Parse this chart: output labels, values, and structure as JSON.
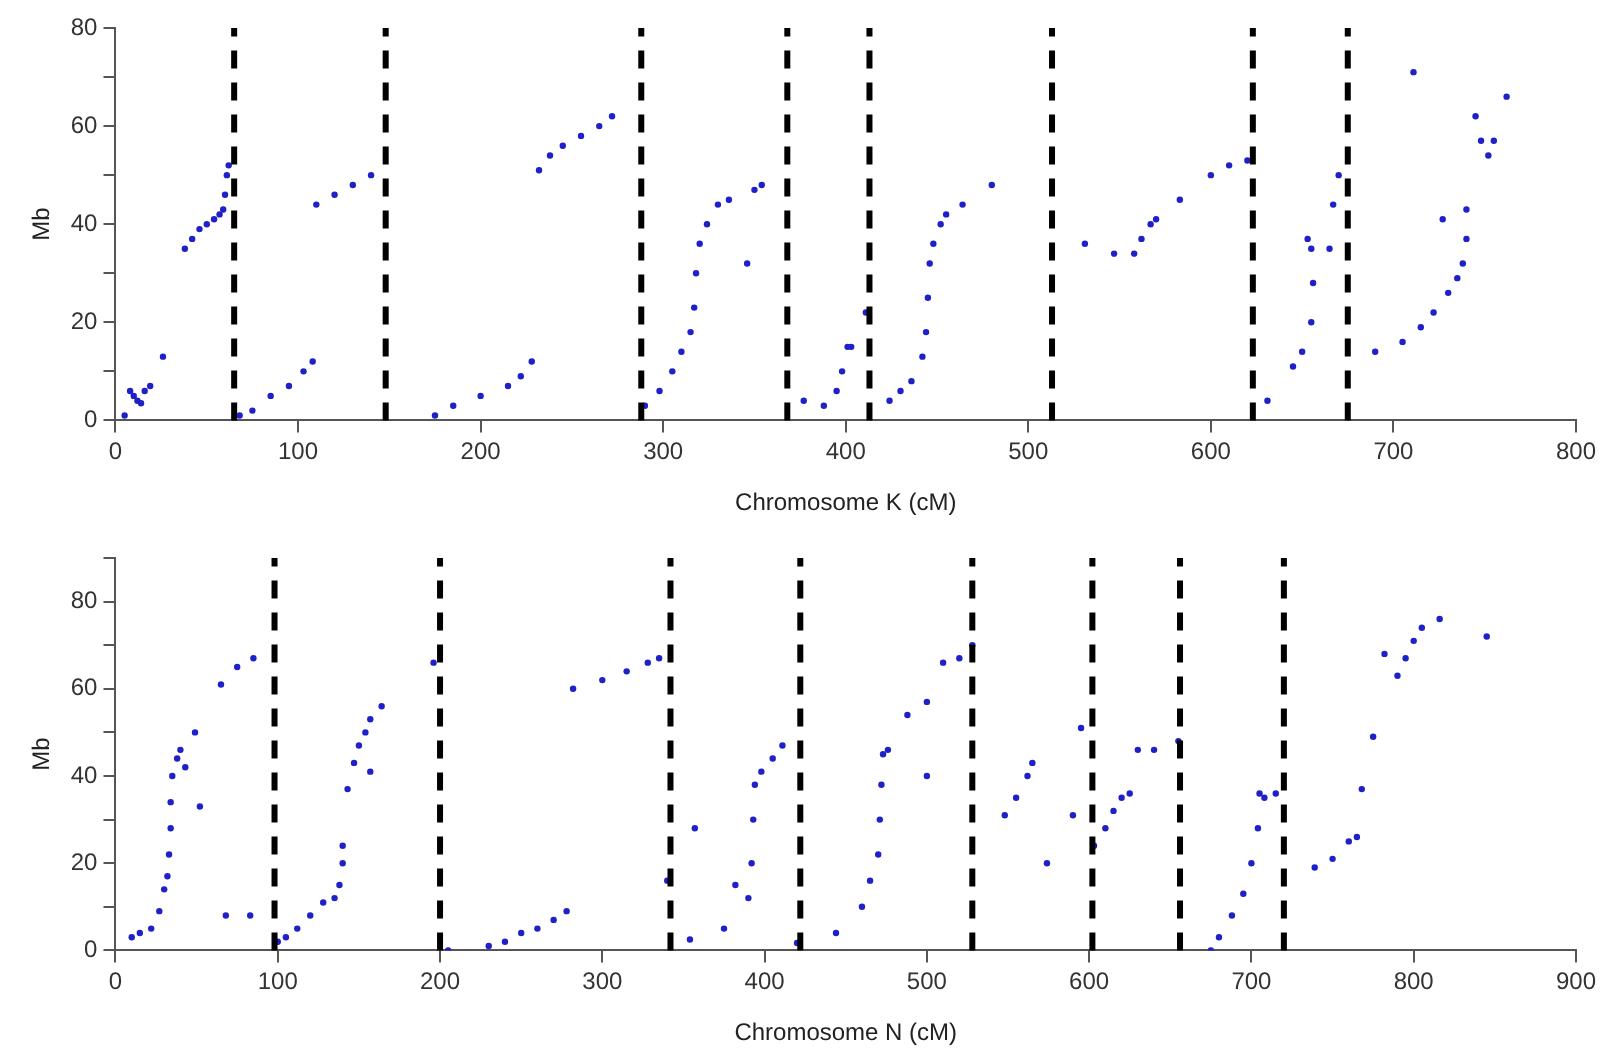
{
  "chart_data": [
    {
      "type": "scatter",
      "xlabel": "Chromosome K (cM)",
      "ylabel": "Mb",
      "xlim": [
        0,
        800
      ],
      "xticks": [
        0,
        100,
        200,
        300,
        400,
        500,
        600,
        700,
        800
      ],
      "ylim": [
        0,
        80
      ],
      "yticks": [
        0,
        {
          "value": 10,
          "label": null
        },
        20,
        {
          "value": 30,
          "label": null
        },
        40,
        {
          "value": 50,
          "label": null
        },
        60,
        {
          "value": 70,
          "label": null
        },
        80
      ],
      "grid": false,
      "legend": false,
      "marker": "circle",
      "series": [
        {
          "color": "#2020c8",
          "x": [
            5,
            8,
            10,
            12,
            14,
            16,
            19,
            26,
            38,
            42,
            46,
            50,
            54,
            57,
            59,
            60,
            61,
            62,
            65,
            68,
            75,
            85,
            95,
            103,
            108,
            110,
            120,
            130,
            140,
            175,
            185,
            200,
            215,
            222,
            228,
            232,
            238,
            245,
            255,
            265,
            272,
            290,
            298,
            305,
            310,
            315,
            317,
            318,
            320,
            324,
            330,
            336,
            346,
            350,
            354,
            377,
            388,
            395,
            398,
            401,
            403,
            411,
            424,
            430,
            436,
            442,
            444,
            445,
            446,
            448,
            452,
            455,
            464,
            480,
            531,
            547,
            558,
            562,
            567,
            570,
            583,
            600,
            610,
            620,
            631,
            645,
            650,
            655,
            656,
            655,
            653,
            665,
            667,
            670,
            690,
            705,
            715,
            722,
            730,
            735,
            738,
            740,
            740,
            727,
            711,
            745,
            748,
            752,
            755,
            762
          ],
          "values": [
            1,
            6,
            5,
            4,
            3.5,
            6,
            7,
            13,
            35,
            37,
            39,
            40,
            41,
            42,
            43,
            46,
            50,
            52,
            0,
            1,
            2,
            5,
            7,
            10,
            12,
            44,
            46,
            48,
            50,
            1,
            3,
            5,
            7,
            9,
            12,
            51,
            54,
            56,
            58,
            60,
            62,
            3,
            6,
            10,
            14,
            18,
            23,
            30,
            36,
            40,
            44,
            45,
            32,
            47,
            48,
            4,
            3,
            6,
            10,
            15,
            15,
            22,
            4,
            6,
            8,
            13,
            18,
            25,
            32,
            36,
            40,
            42,
            44,
            48,
            36,
            34,
            34,
            37,
            40,
            41,
            45,
            50,
            52,
            53,
            4,
            11,
            14,
            20,
            28,
            35,
            37,
            35,
            44,
            50,
            14,
            16,
            19,
            22,
            26,
            29,
            32,
            37,
            43,
            41,
            71,
            62,
            57,
            54,
            57,
            66
          ]
        }
      ],
      "ref_lines": [
        {
          "axis": "x",
          "value": 65,
          "color": "#000000",
          "line_style": "dashed"
        },
        {
          "axis": "x",
          "value": 148,
          "color": "#000000",
          "line_style": "dashed"
        },
        {
          "axis": "x",
          "value": 288,
          "color": "#000000",
          "line_style": "dashed"
        },
        {
          "axis": "x",
          "value": 368,
          "color": "#000000",
          "line_style": "dashed"
        },
        {
          "axis": "x",
          "value": 413,
          "color": "#000000",
          "line_style": "dashed"
        },
        {
          "axis": "x",
          "value": 513,
          "color": "#000000",
          "line_style": "dashed"
        },
        {
          "axis": "x",
          "value": 623,
          "color": "#000000",
          "line_style": "dashed"
        },
        {
          "axis": "x",
          "value": 675,
          "color": "#000000",
          "line_style": "dashed"
        }
      ]
    },
    {
      "type": "scatter",
      "xlabel": "Chromosome N (cM)",
      "ylabel": "Mb",
      "xlim": [
        0,
        900
      ],
      "xticks": [
        0,
        100,
        200,
        300,
        400,
        500,
        600,
        700,
        800,
        900
      ],
      "ylim": [
        0,
        90
      ],
      "yticks": [
        0,
        {
          "value": 10,
          "label": null
        },
        20,
        {
          "value": 30,
          "label": null
        },
        40,
        {
          "value": 50,
          "label": null
        },
        60,
        {
          "value": 70,
          "label": null
        },
        80,
        {
          "value": 90,
          "label": null
        }
      ],
      "grid": false,
      "legend": false,
      "marker": "circle",
      "series": [
        {
          "color": "#2020c8",
          "x": [
            10,
            15,
            22,
            27,
            30,
            32,
            33,
            34,
            34,
            35,
            38,
            40,
            43,
            49,
            52,
            68,
            83,
            65,
            75,
            85,
            100,
            105,
            112,
            120,
            128,
            135,
            138,
            140,
            140,
            143,
            147,
            150,
            154,
            157,
            157,
            164,
            196,
            205,
            230,
            240,
            250,
            260,
            270,
            278,
            282,
            300,
            315,
            328,
            335,
            340,
            357,
            354,
            375,
            382,
            390,
            392,
            393,
            394,
            398,
            405,
            411,
            420,
            444,
            460,
            465,
            470,
            471,
            472,
            473,
            476,
            488,
            500,
            500,
            510,
            520,
            528,
            548,
            555,
            562,
            565,
            574,
            590,
            595,
            603,
            610,
            615,
            620,
            625,
            630,
            640,
            655,
            675,
            680,
            688,
            695,
            700,
            704,
            705,
            708,
            715,
            739,
            750,
            760,
            765,
            768,
            775,
            782,
            790,
            795,
            800,
            805,
            816,
            845
          ],
          "values": [
            3,
            4,
            5,
            9,
            14,
            17,
            22,
            28,
            34,
            40,
            44,
            46,
            42,
            50,
            33,
            8,
            8,
            61,
            65,
            67,
            2,
            3,
            5,
            8,
            11,
            12,
            15,
            20,
            24,
            37,
            43,
            47,
            50,
            53,
            41,
            56,
            66,
            0,
            1,
            2,
            4,
            5,
            7,
            9,
            60,
            62,
            64,
            66,
            67,
            16,
            28,
            2.5,
            5,
            15,
            12,
            20,
            30,
            38,
            41,
            44,
            47,
            1.7,
            4,
            10,
            16,
            22,
            30,
            38,
            45,
            46,
            54,
            57,
            40,
            66,
            67,
            70,
            31,
            35,
            40,
            43,
            20,
            31,
            51,
            24,
            28,
            32,
            35,
            36,
            46,
            46,
            48,
            0,
            3,
            8,
            13,
            20,
            28,
            36,
            35,
            36,
            19,
            21,
            25,
            26,
            37,
            49,
            68,
            63,
            67,
            71,
            74,
            76,
            72
          ]
        }
      ],
      "ref_lines": [
        {
          "axis": "x",
          "value": 98,
          "color": "#000000",
          "line_style": "dashed"
        },
        {
          "axis": "x",
          "value": 200,
          "color": "#000000",
          "line_style": "dashed"
        },
        {
          "axis": "x",
          "value": 342,
          "color": "#000000",
          "line_style": "dashed"
        },
        {
          "axis": "x",
          "value": 422,
          "color": "#000000",
          "line_style": "dashed"
        },
        {
          "axis": "x",
          "value": 528,
          "color": "#000000",
          "line_style": "dashed"
        },
        {
          "axis": "x",
          "value": 602,
          "color": "#000000",
          "line_style": "dashed"
        },
        {
          "axis": "x",
          "value": 656,
          "color": "#000000",
          "line_style": "dashed"
        },
        {
          "axis": "x",
          "value": 720,
          "color": "#000000",
          "line_style": "dashed"
        }
      ]
    }
  ]
}
